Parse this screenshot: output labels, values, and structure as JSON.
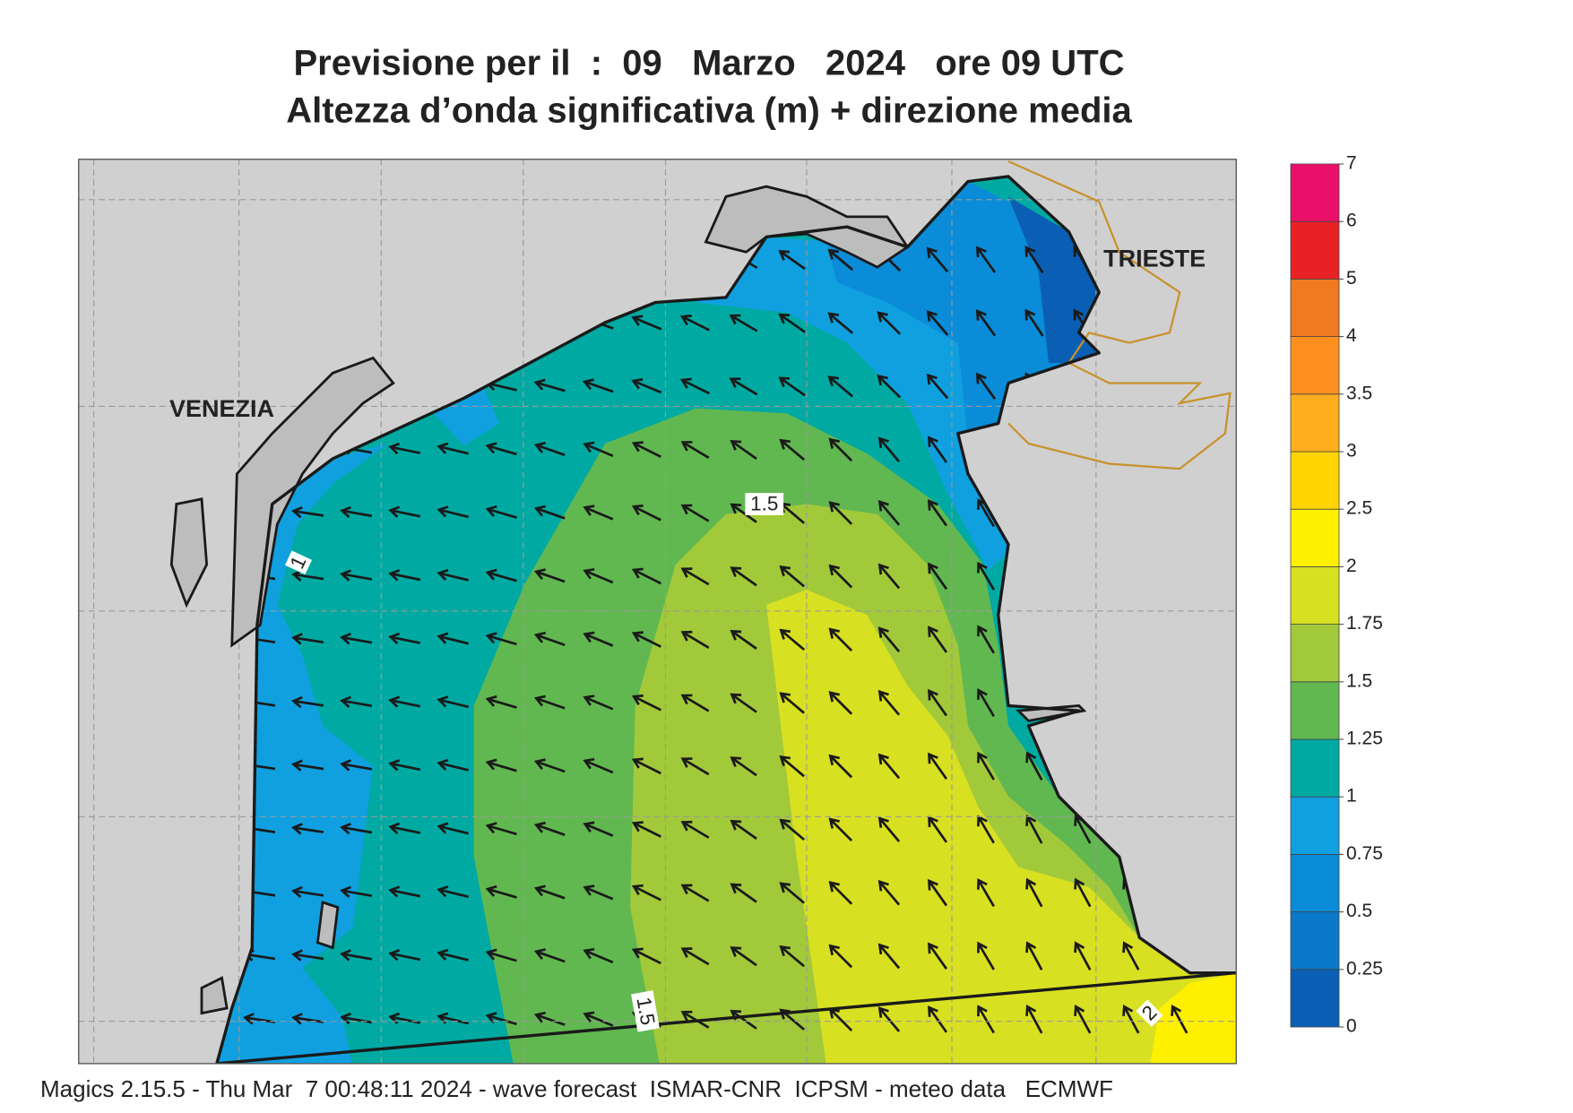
{
  "header": {
    "title": "Previsione per il  :  09   Marzo   2024   ore 09 UTC",
    "subtitle": "Altezza d’onda significativa (m) + direzione media"
  },
  "map": {
    "places": [
      "VENEZIA",
      "TRIESTE"
    ],
    "contour_labels": [
      "1",
      "1.5",
      "1.5",
      "2"
    ]
  },
  "colorbar": {
    "levels": [
      0,
      0.25,
      0.5,
      0.75,
      1,
      1.25,
      1.5,
      1.75,
      2,
      2.5,
      3,
      3.5,
      4,
      5,
      6,
      7
    ],
    "colors": [
      "#0a5fb4",
      "#0a78c8",
      "#0a8cd8",
      "#10a0e0",
      "#00aaa2",
      "#62b850",
      "#a2c93a",
      "#d8e022",
      "#fff000",
      "#ffd400",
      "#ffae1e",
      "#ff9020",
      "#f07a20",
      "#e82224",
      "#ea106a"
    ]
  },
  "footer": "Magics 2.15.5 - Thu Mar  7 00:48:11 2024 - wave forecast  ISMAR-CNR  ICPSM - meteo data   ECMWF"
}
